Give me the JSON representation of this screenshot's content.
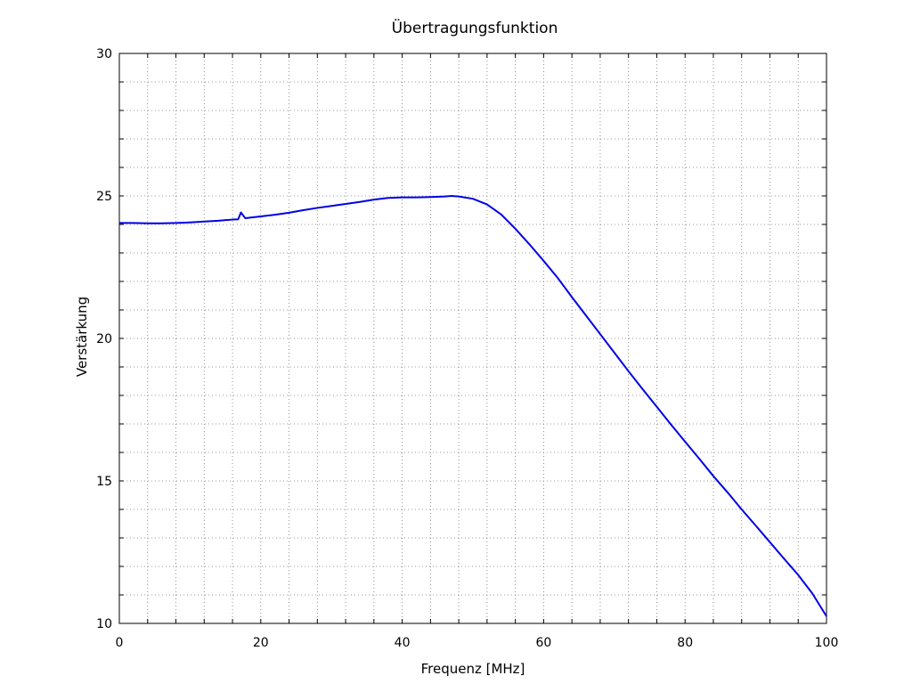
{
  "chart_data": {
    "type": "line",
    "title": "Übertragungsfunktion",
    "xlabel": "Frequenz [MHz]",
    "ylabel": "Verstärkung",
    "xlim": [
      0,
      100
    ],
    "ylim": [
      10,
      30
    ],
    "x_ticks": [
      0,
      20,
      40,
      60,
      80,
      100
    ],
    "y_ticks": [
      10,
      15,
      20,
      25,
      30
    ],
    "x_tick_labels": [
      "0",
      "20",
      "40",
      "60",
      "80",
      "100"
    ],
    "y_tick_labels": [
      "10",
      "15",
      "20",
      "25",
      "30"
    ],
    "x_minor_step": 4,
    "y_minor_step": 1,
    "grid": true,
    "grid_style": "dotted",
    "line_color": "#0000e6",
    "series": [
      {
        "x": [
          0,
          2,
          4,
          6,
          8,
          10,
          12,
          14,
          16,
          16.8,
          17.2,
          17.8,
          20,
          22,
          24,
          26,
          28,
          30,
          32,
          34,
          36,
          38,
          40,
          42,
          44,
          46,
          47,
          48,
          50,
          52,
          54,
          56,
          58,
          60,
          62,
          64,
          66,
          68,
          70,
          72,
          74,
          76,
          78,
          80,
          82,
          84,
          86,
          88,
          90,
          92,
          94,
          96,
          98,
          100
        ],
        "y": [
          24.05,
          24.05,
          24.04,
          24.04,
          24.05,
          24.07,
          24.1,
          24.13,
          24.17,
          24.18,
          24.42,
          24.22,
          24.28,
          24.34,
          24.41,
          24.5,
          24.58,
          24.65,
          24.72,
          24.79,
          24.87,
          24.93,
          24.95,
          24.95,
          24.96,
          24.98,
          25.0,
          24.98,
          24.9,
          24.7,
          24.35,
          23.85,
          23.3,
          22.72,
          22.12,
          21.45,
          20.8,
          20.15,
          19.5,
          18.85,
          18.22,
          17.6,
          16.98,
          16.38,
          15.78,
          15.17,
          14.6,
          14.0,
          13.43,
          12.85,
          12.27,
          11.7,
          11.05,
          10.25
        ]
      }
    ]
  }
}
